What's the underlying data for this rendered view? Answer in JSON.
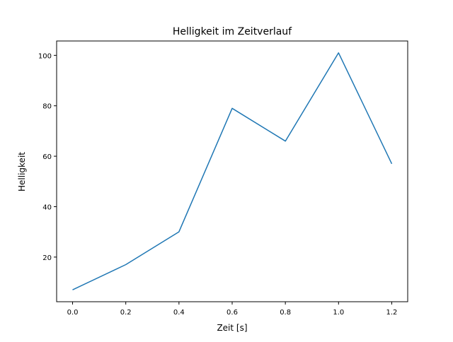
{
  "chart_data": {
    "type": "line",
    "title": "Helligkeit im Zeitverlauf",
    "xlabel": "Zeit [s]",
    "ylabel": "Helligkeit",
    "x": [
      0.0,
      0.2,
      0.4,
      0.6,
      0.8,
      1.0,
      1.2
    ],
    "series": [
      {
        "name": "Helligkeit",
        "values": [
          7,
          17,
          30,
          79,
          66,
          101,
          57
        ],
        "color": "#1f77b4"
      }
    ],
    "xlim": [
      -0.06,
      1.26
    ],
    "ylim": [
      2.3,
      105.7
    ],
    "xticks": [
      0.0,
      0.2,
      0.4,
      0.6,
      0.8,
      1.0,
      1.2
    ],
    "xtick_labels": [
      "0.0",
      "0.2",
      "0.4",
      "0.6",
      "0.8",
      "1.0",
      "1.2"
    ],
    "yticks": [
      20,
      40,
      60,
      80,
      100
    ],
    "ytick_labels": [
      "20",
      "40",
      "60",
      "80",
      "100"
    ],
    "grid": false,
    "legend": "none"
  }
}
